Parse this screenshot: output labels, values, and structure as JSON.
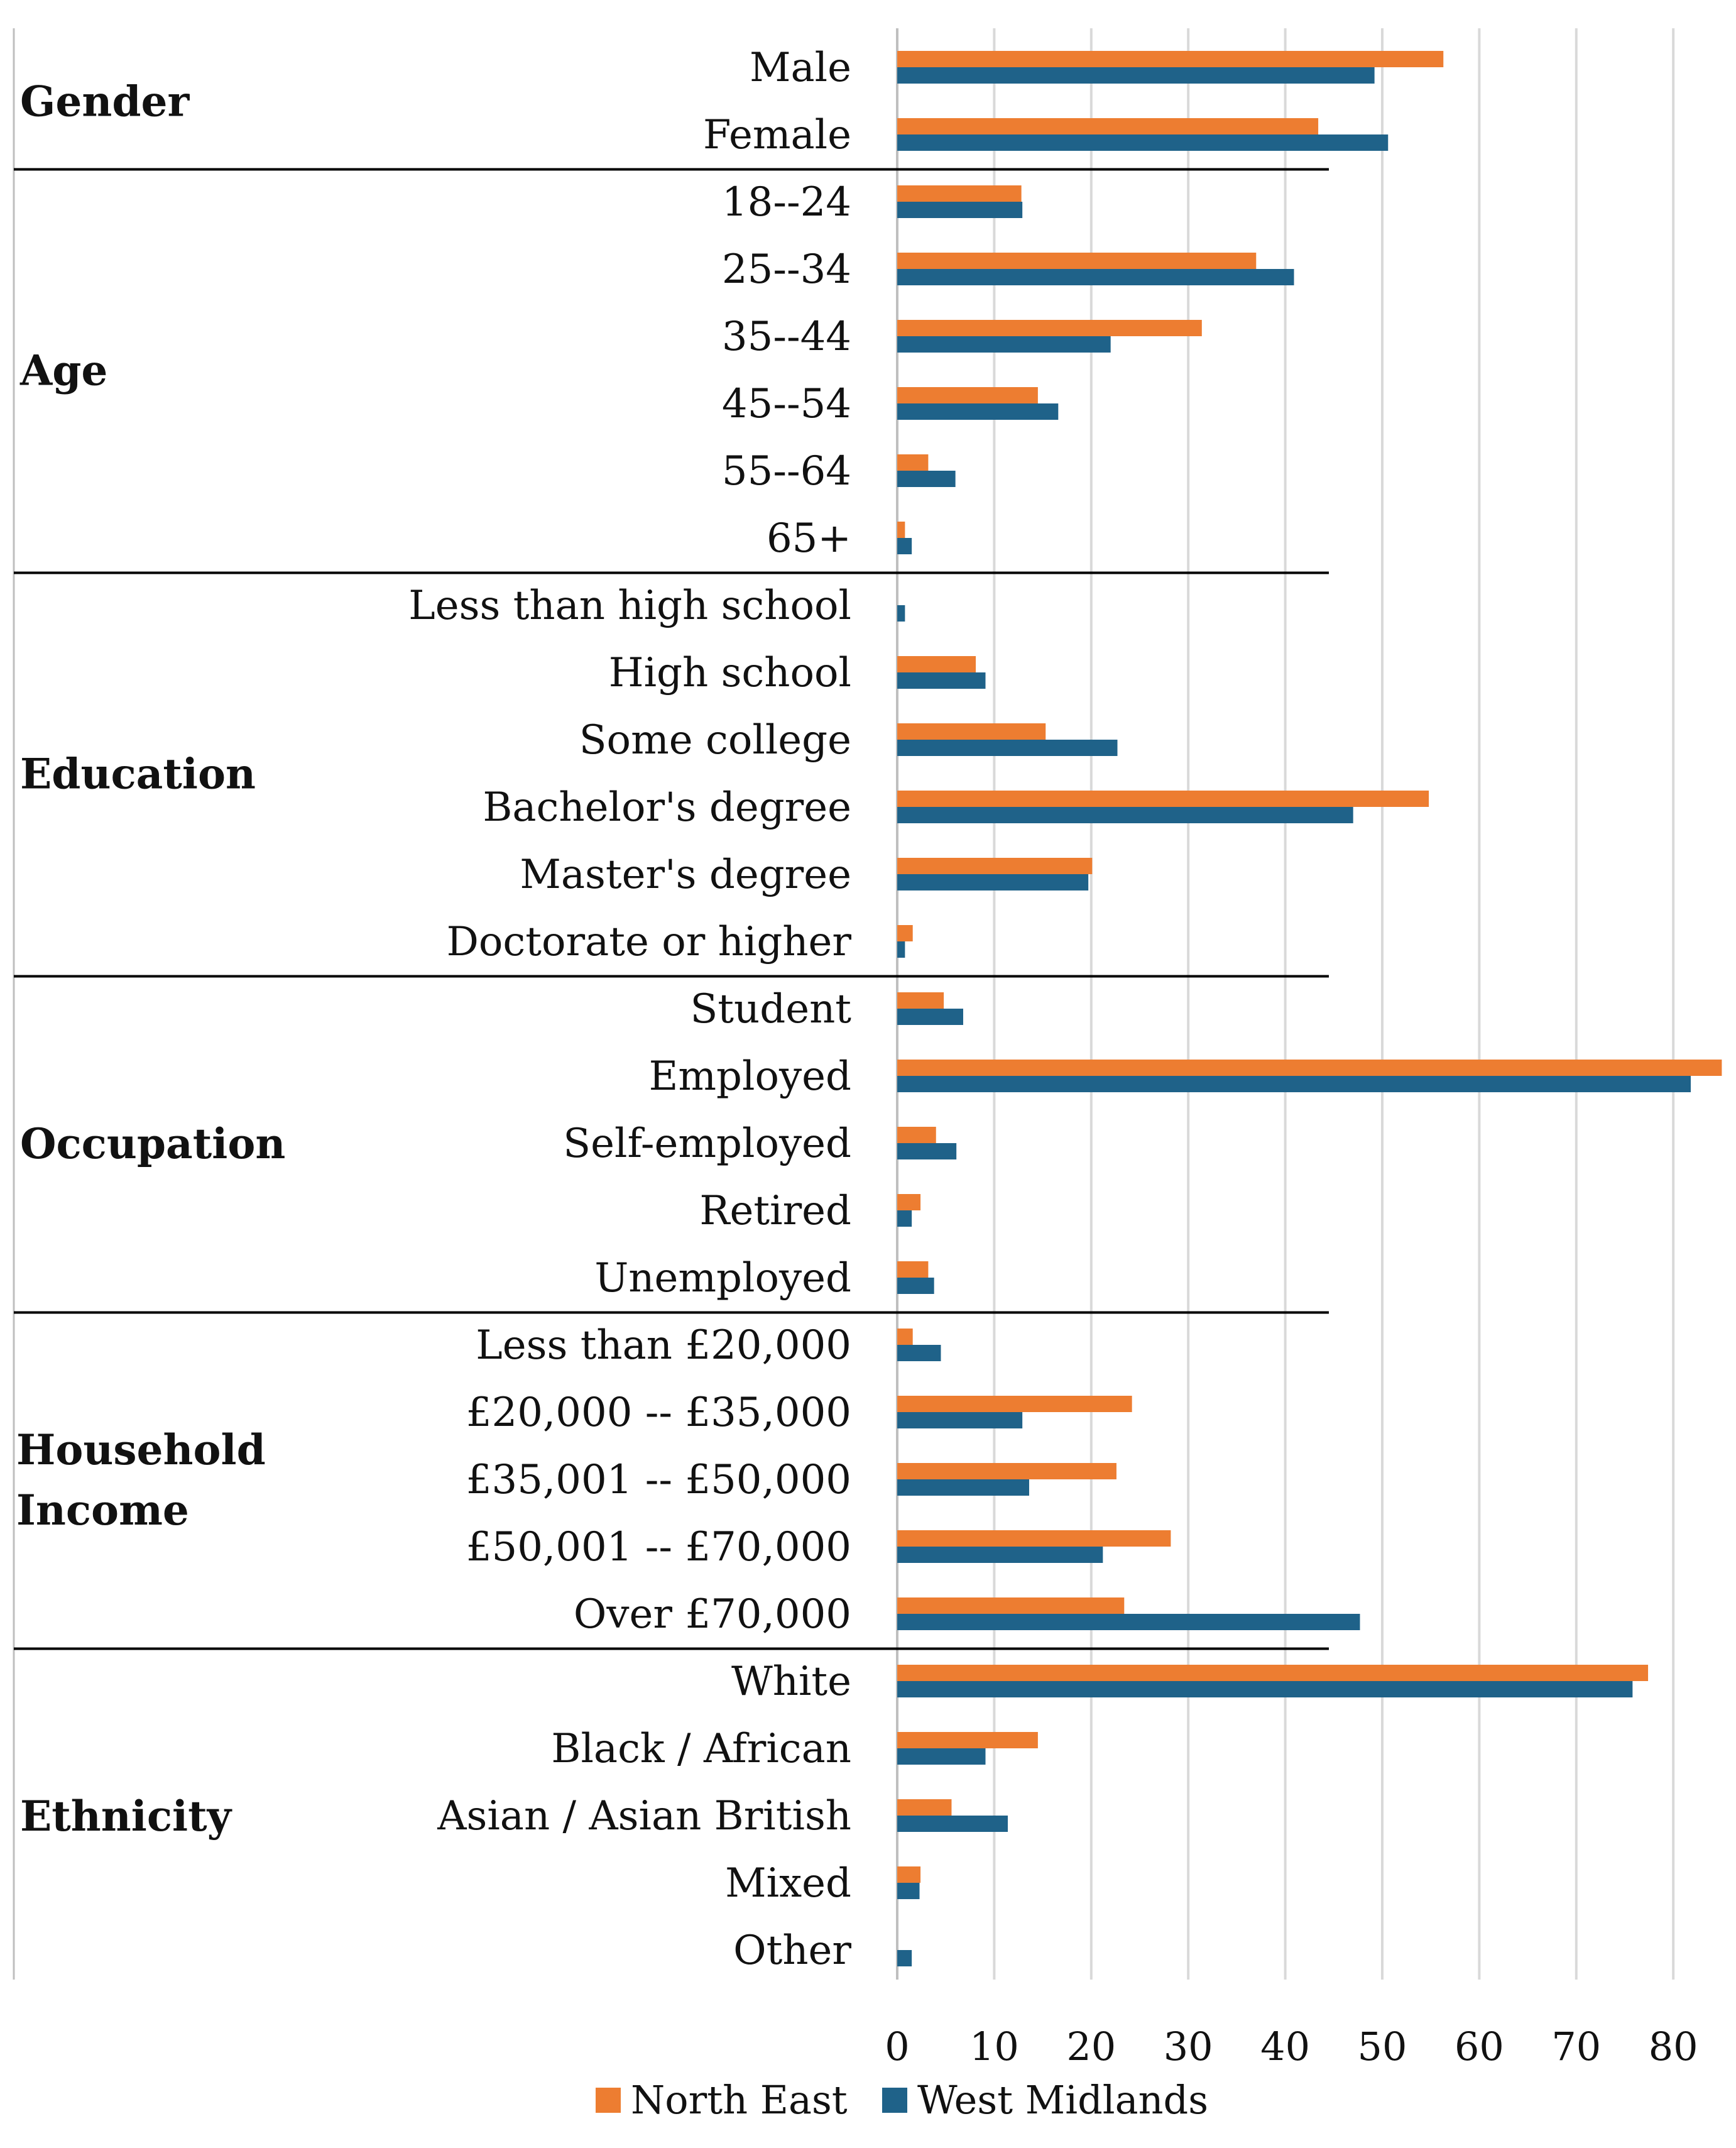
{
  "chart_data": {
    "type": "bar",
    "orientation": "horizontal",
    "title": "",
    "xlabel": "",
    "ylabel": "",
    "xlim": [
      0,
      85
    ],
    "xticks": [
      0,
      10,
      20,
      30,
      40,
      50,
      60,
      70,
      80
    ],
    "grid": true,
    "legend_position": "bottom",
    "colors": {
      "North East": "#ED7D31",
      "West Midlands": "#1F6289",
      "grid": "#d9d9d9",
      "axis": "#bfbfbf",
      "separator": "#000000"
    },
    "groups": [
      {
        "name": "Gender",
        "categories": [
          "Male",
          "Female"
        ]
      },
      {
        "name": "Age",
        "categories": [
          "18--24",
          "25--34",
          "35--44",
          "45--54",
          "55--64",
          "65+"
        ]
      },
      {
        "name": "Education",
        "categories": [
          "Less than high school",
          "High school",
          "Some college",
          "Bachelor's degree",
          "Master's degree",
          "Doctorate or higher"
        ]
      },
      {
        "name": "Occupation",
        "categories": [
          "Student",
          "Employed",
          "Self-employed",
          "Retired",
          "Unemployed"
        ]
      },
      {
        "name": "Household Income",
        "categories": [
          "Less than £20,000",
          "£20,000 -- £35,000",
          "£35,001 -- £50,000",
          "£50,001 -- £70,000",
          "Over £70,000"
        ]
      },
      {
        "name": "Ethnicity",
        "categories": [
          "White",
          "Black / African",
          "Asian / Asian British",
          "Mixed",
          "Other"
        ]
      }
    ],
    "series": [
      {
        "name": "North East",
        "values": [
          56.3,
          43.4,
          12.8,
          37.0,
          31.4,
          14.5,
          3.2,
          0.8,
          0,
          8.1,
          15.3,
          54.8,
          20.1,
          1.6,
          4.8,
          85.0,
          4.0,
          2.4,
          3.2,
          1.6,
          24.2,
          22.6,
          28.2,
          23.4,
          77.4,
          14.5,
          5.6,
          2.4,
          0
        ]
      },
      {
        "name": "West Midlands",
        "values": [
          49.2,
          50.6,
          12.9,
          40.9,
          22.0,
          16.6,
          6.0,
          1.5,
          0.8,
          9.1,
          22.7,
          47.0,
          19.7,
          0.8,
          6.8,
          81.8,
          6.1,
          1.5,
          3.8,
          4.5,
          12.9,
          13.6,
          21.2,
          47.7,
          75.8,
          9.1,
          11.4,
          2.3,
          1.5
        ]
      }
    ]
  }
}
